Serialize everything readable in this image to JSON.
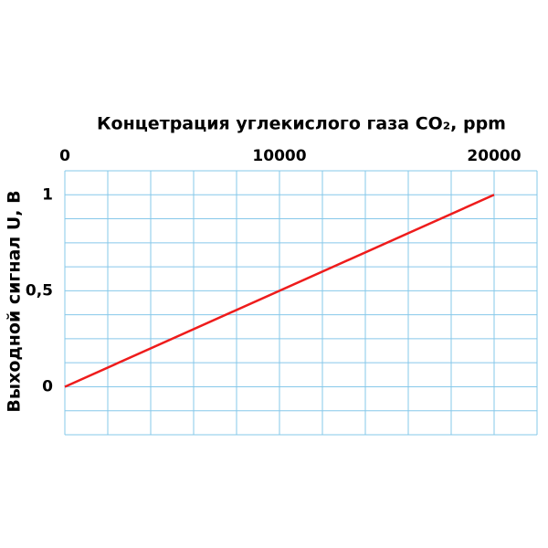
{
  "chart_data": {
    "type": "line",
    "title": "Концетрация углекислого газа CO₂, ppm",
    "y_label": "Выходной сигнал U, В",
    "x": [
      0,
      20000
    ],
    "series": [
      {
        "color": "#ee1c1c",
        "values": [
          0,
          1
        ]
      }
    ],
    "xlim": [
      0,
      22000
    ],
    "ylim": [
      -0.25,
      1.125
    ],
    "xticks": [
      0,
      10000,
      20000
    ],
    "yticks": [
      0,
      {
        "value": 0.5,
        "label": "0,5"
      },
      1
    ],
    "xminorticks": [
      0,
      2000,
      4000,
      6000,
      8000,
      10000,
      12000,
      14000,
      16000,
      18000,
      20000,
      22000
    ],
    "yminorticks": [
      -0.25,
      -0.125,
      0,
      0.125,
      0.25,
      0.375,
      0.5,
      0.625,
      0.75,
      0.875,
      1,
      1.125
    ],
    "grid": true,
    "grid_color": "#86c8ea",
    "x_axis_position": "top"
  }
}
